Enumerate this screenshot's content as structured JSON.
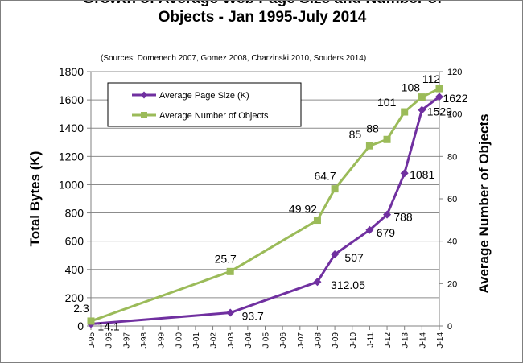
{
  "chart_data": {
    "type": "line",
    "title_line1": "Growth of Average Web Page Size and Number of",
    "title_line2": "Objects - Jan 1995-July 2014",
    "subtitle": "(Sources: Domenech 2007, Gomez 2008, Charzinski 2010, Souders 2014)",
    "ylabel_left": "Total Bytes (K)",
    "ylabel_right": "Average Number of Objects",
    "ylim_left": [
      0,
      1800
    ],
    "ylim_right": [
      0,
      120
    ],
    "yticks_left": [
      0,
      200,
      400,
      600,
      800,
      1000,
      1200,
      1400,
      1600,
      1800
    ],
    "yticks_right": [
      0,
      20,
      40,
      60,
      80,
      100,
      120
    ],
    "x_ticks": [
      "J-95",
      "J-96",
      "J-97",
      "J-98",
      "J-99",
      "J-00",
      "J-01",
      "J-02",
      "J-03",
      "J-04",
      "J-05",
      "J-06",
      "J-07",
      "J-08",
      "J-09",
      "J-10",
      "J-11",
      "J-12",
      "J-13",
      "J-14",
      "J-14"
    ],
    "grid": true,
    "legend_position": "top-left",
    "series": [
      {
        "name": "Average Page Size (K)",
        "axis": "left",
        "color": "#7030a0",
        "marker": "diamond",
        "points": [
          {
            "x": 0,
            "y": 14.1,
            "label": "14.1"
          },
          {
            "x": 8,
            "y": 93.7,
            "label": "93.7"
          },
          {
            "x": 13,
            "y": 312.05,
            "label": "312.05"
          },
          {
            "x": 14,
            "y": 507,
            "label": "507"
          },
          {
            "x": 16,
            "y": 679,
            "label": "679"
          },
          {
            "x": 17,
            "y": 788,
            "label": "788"
          },
          {
            "x": 18,
            "y": 1081,
            "label": "1081"
          },
          {
            "x": 19,
            "y": 1529,
            "label": "1529"
          },
          {
            "x": 20,
            "y": 1622,
            "label": "1622"
          }
        ]
      },
      {
        "name": "Average Number of Objects",
        "axis": "right",
        "color": "#9bbb59",
        "marker": "square",
        "points": [
          {
            "x": 0,
            "y": 2.3,
            "label": "2.3"
          },
          {
            "x": 8,
            "y": 25.7,
            "label": "25.7"
          },
          {
            "x": 13,
            "y": 49.92,
            "label": "49.92"
          },
          {
            "x": 14,
            "y": 64.7,
            "label": "64.7"
          },
          {
            "x": 16,
            "y": 85,
            "label": "85"
          },
          {
            "x": 17,
            "y": 88,
            "label": "88"
          },
          {
            "x": 18,
            "y": 101,
            "label": "101"
          },
          {
            "x": 19,
            "y": 108,
            "label": "108"
          },
          {
            "x": 20,
            "y": 112,
            "label": "112"
          }
        ]
      }
    ]
  }
}
